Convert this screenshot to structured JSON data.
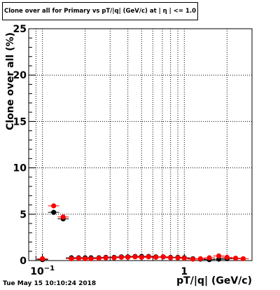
{
  "title": "Clone  over all for Primary vs pT/|q| (GeV/c) at |  η | <= 1.0",
  "footer": "Tue May 15 10:10:24 2018",
  "chart_data": {
    "type": "scatter",
    "xlabel": "pT/|q| (GeV/c)",
    "ylabel": "Clone  over all (%)",
    "x_scale": "log",
    "xlim": [
      0.08,
      3.0
    ],
    "ylim": [
      0,
      25
    ],
    "y_ticks": [
      "0",
      "5",
      "10",
      "15",
      "20",
      "25"
    ],
    "x_ticks": [
      {
        "value": 0.1,
        "label": "10",
        "exp": "−1"
      },
      {
        "value": 1,
        "label": "1",
        "exp": ""
      }
    ],
    "grid": true,
    "series": [
      {
        "color": "#000000",
        "points": [
          [
            0.1,
            0.1
          ],
          [
            0.12,
            5.2
          ],
          [
            0.14,
            4.5
          ],
          [
            0.16,
            0.3
          ],
          [
            0.18,
            0.3
          ],
          [
            0.2,
            0.3
          ],
          [
            0.22,
            0.3
          ],
          [
            0.25,
            0.3
          ],
          [
            0.28,
            0.35
          ],
          [
            0.32,
            0.35
          ],
          [
            0.36,
            0.4
          ],
          [
            0.4,
            0.4
          ],
          [
            0.45,
            0.45
          ],
          [
            0.5,
            0.45
          ],
          [
            0.56,
            0.45
          ],
          [
            0.63,
            0.4
          ],
          [
            0.71,
            0.4
          ],
          [
            0.8,
            0.35
          ],
          [
            0.9,
            0.35
          ],
          [
            1.0,
            0.3
          ],
          [
            1.15,
            0.2
          ],
          [
            1.3,
            0.15
          ],
          [
            1.5,
            0.1
          ],
          [
            1.75,
            0.15
          ],
          [
            2.0,
            0.2
          ],
          [
            2.3,
            0.25
          ]
        ]
      },
      {
        "color": "#ff0000",
        "points": [
          [
            0.1,
            0.2
          ],
          [
            0.12,
            5.9
          ],
          [
            0.14,
            4.7
          ],
          [
            0.16,
            0.2
          ],
          [
            0.18,
            0.25
          ],
          [
            0.2,
            0.2
          ],
          [
            0.22,
            0.2
          ],
          [
            0.25,
            0.25
          ],
          [
            0.28,
            0.3
          ],
          [
            0.32,
            0.3
          ],
          [
            0.36,
            0.35
          ],
          [
            0.4,
            0.35
          ],
          [
            0.45,
            0.4
          ],
          [
            0.5,
            0.35
          ],
          [
            0.56,
            0.4
          ],
          [
            0.63,
            0.35
          ],
          [
            0.71,
            0.4
          ],
          [
            0.8,
            0.3
          ],
          [
            0.9,
            0.3
          ],
          [
            1.0,
            0.25
          ],
          [
            1.15,
            0.15
          ],
          [
            1.3,
            0.2
          ],
          [
            1.5,
            0.3
          ],
          [
            1.75,
            0.5
          ],
          [
            2.0,
            0.35
          ],
          [
            2.3,
            0.25
          ],
          [
            2.6,
            0.2
          ]
        ]
      }
    ]
  }
}
